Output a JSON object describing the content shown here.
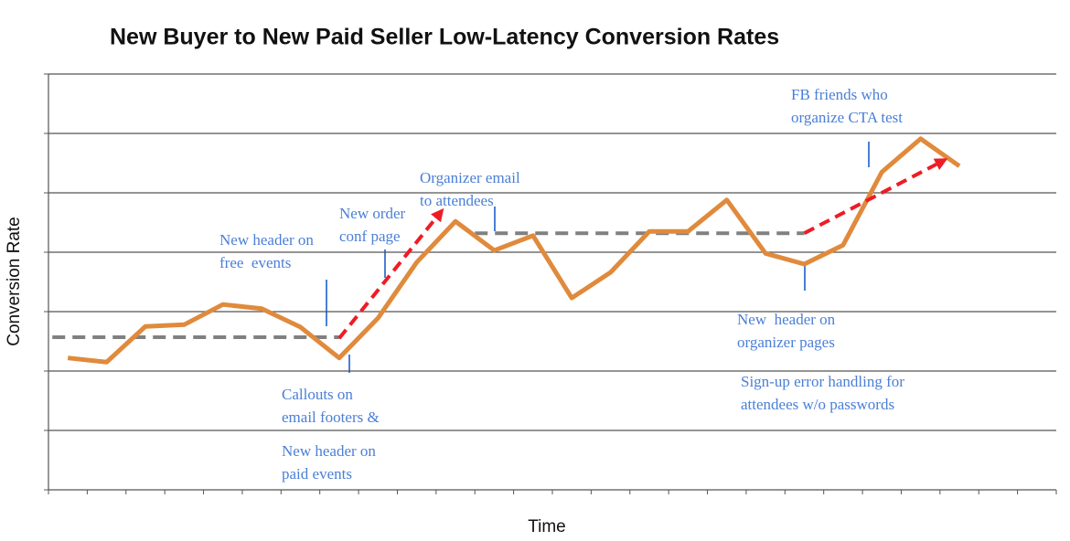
{
  "chart_data": {
    "type": "line",
    "title": "New Buyer to New Paid Seller Low-Latency Conversion Rates",
    "y_label": "Conversion Rate",
    "x_label": "Time",
    "categories": [
      null,
      null,
      null,
      null,
      null,
      null,
      null,
      null,
      null,
      null,
      null,
      null,
      null,
      null,
      null,
      null,
      null,
      null,
      null,
      null,
      null,
      null,
      null,
      null,
      null,
      null
    ],
    "values": [
      2.22,
      2.15,
      2.75,
      2.78,
      3.12,
      3.05,
      2.74,
      2.22,
      2.89,
      3.83,
      4.52,
      4.03,
      4.28,
      3.23,
      3.66,
      4.35,
      4.35,
      4.88,
      3.98,
      3.8,
      4.12,
      5.35,
      5.91,
      5.45,
      null,
      null
    ],
    "color": "#e08a3c",
    "ylim": [
      0,
      7
    ],
    "yticks": [
      0,
      1,
      2,
      3,
      4,
      5,
      6,
      7
    ],
    "grid": true,
    "reference_lines": [
      {
        "x": [
          -0.4,
          7
        ],
        "value": 2.57,
        "color": "#808080"
      },
      {
        "x": [
          10.5,
          19
        ],
        "value": 4.32,
        "color": "#808080"
      }
    ],
    "trend_arrows": [
      {
        "x": [
          7,
          9.7
        ],
        "y": [
          2.55,
          4.74
        ],
        "color": "#ee1c25"
      },
      {
        "x": [
          19,
          22.7
        ],
        "y": [
          4.32,
          5.58
        ],
        "color": "#ee1c25"
      }
    ],
    "annotations": [
      [
        "New header on",
        "free  events"
      ],
      [
        "New order",
        "conf page"
      ],
      [
        "Organizer email",
        "to attendees"
      ],
      [
        "FB friends who",
        "organize CTA test"
      ],
      [
        "Callouts on",
        "email footers &"
      ],
      [
        "New header on",
        "paid events"
      ],
      [
        "New  header on",
        "organizer pages"
      ],
      [
        "Sign-up error handling for",
        "attendees w/o passwords"
      ]
    ]
  }
}
